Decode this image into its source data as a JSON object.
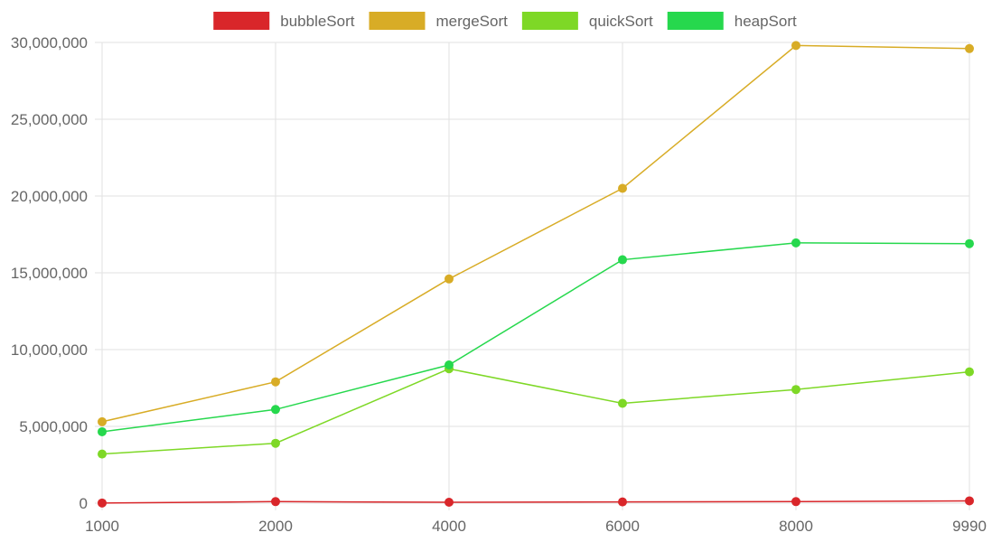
{
  "chart_data": {
    "type": "line",
    "title": "",
    "xlabel": "",
    "ylabel": "",
    "categories": [
      "1000",
      "2000",
      "4000",
      "6000",
      "8000",
      "9990"
    ],
    "ylim": [
      0,
      30000000
    ],
    "y_ticks": [
      0,
      5000000,
      10000000,
      15000000,
      20000000,
      25000000,
      30000000
    ],
    "y_tick_labels": [
      "0",
      "5,000,000",
      "10,000,000",
      "15,000,000",
      "20,000,000",
      "25,000,000",
      "30,000,000"
    ],
    "grid": true,
    "legend_position": "top",
    "series": [
      {
        "name": "bubbleSort",
        "color": "#d9262a",
        "values": [
          10000,
          100000,
          60000,
          80000,
          100000,
          150000
        ]
      },
      {
        "name": "mergeSort",
        "color": "#d8ac26",
        "values": [
          5300000,
          7900000,
          14600000,
          20500000,
          29800000,
          29600000
        ]
      },
      {
        "name": "quickSort",
        "color": "#7ed826",
        "values": [
          3200000,
          3900000,
          8750000,
          6500000,
          7400000,
          8550000
        ]
      },
      {
        "name": "heapSort",
        "color": "#26d84d",
        "values": [
          4650000,
          6100000,
          9000000,
          15850000,
          16950000,
          16900000
        ]
      }
    ]
  }
}
